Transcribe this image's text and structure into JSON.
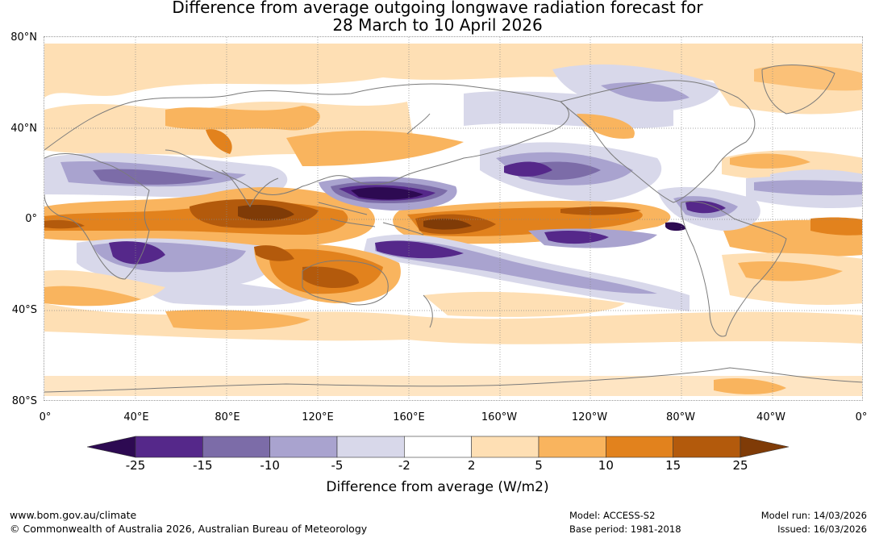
{
  "title": {
    "line1": "Difference from average outgoing longwave radiation forecast for",
    "line2": "28 March to 10 April 2026"
  },
  "map": {
    "projection": "equirectangular",
    "lat_labels": [
      "80°N",
      "40°N",
      "0°",
      "40°S",
      "80°S"
    ],
    "lon_labels": [
      "0°",
      "40°E",
      "80°E",
      "120°E",
      "160°E",
      "160°W",
      "120°W",
      "80°W",
      "40°W",
      "0°"
    ],
    "graticule": "dotted",
    "coastline_color": "#7a7a7a"
  },
  "legend": {
    "label": "Difference from average (W/m2)",
    "ticks": [
      "-25",
      "-15",
      "-10",
      "-5",
      "-2",
      "2",
      "5",
      "10",
      "15",
      "25"
    ],
    "colors": [
      "#2d0a52",
      "#55288a",
      "#7c6ca8",
      "#a9a3cf",
      "#d8d8ea",
      "#ffffff",
      "#fedfb4",
      "#f9b45e",
      "#e2821d",
      "#b35a0c",
      "#7f3b07"
    ],
    "extend": "both"
  },
  "footer": {
    "url": "www.bom.gov.au/climate",
    "copyright": "© Commonwealth of Australia 2026, Australian Bureau of Meteorology",
    "model": "Model: ACCESS-S2",
    "base_period": "Base period: 1981-2018",
    "model_run": "Model run: 14/03/2026",
    "issued": "Issued: 16/03/2026"
  }
}
